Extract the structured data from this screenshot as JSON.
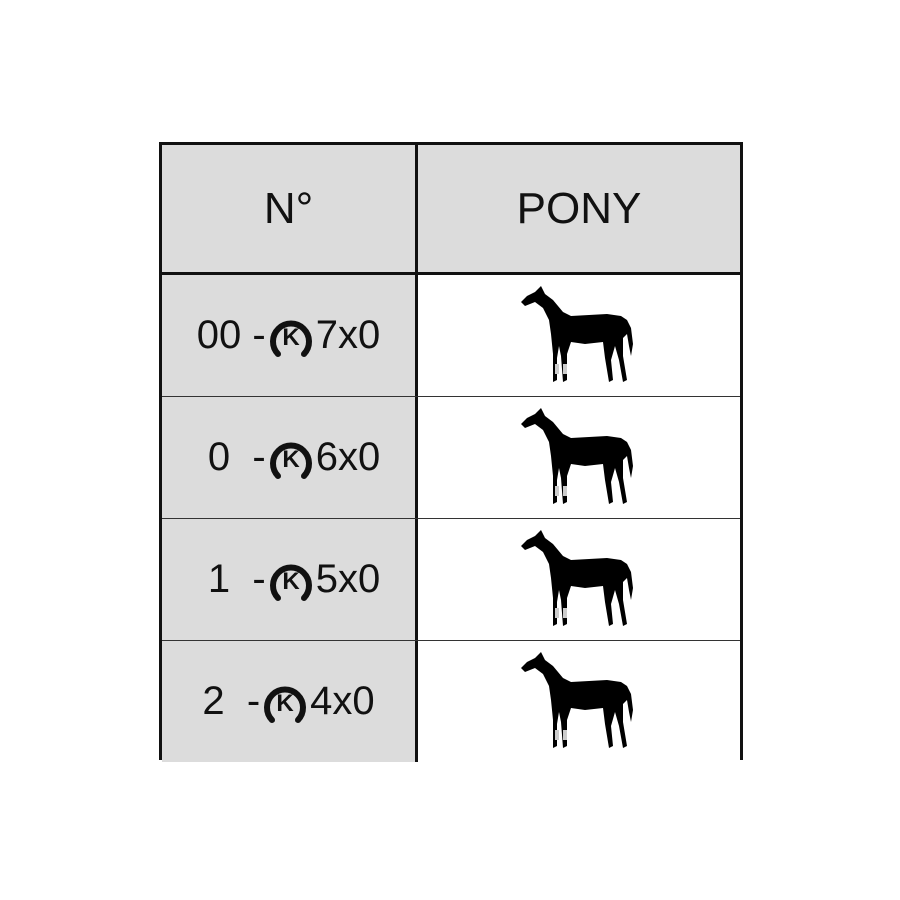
{
  "header": {
    "col1": "N°",
    "col2": "PONY"
  },
  "rows": [
    {
      "number": "00",
      "separator": " -",
      "size": "7x0",
      "icon": "horse-icon"
    },
    {
      "number": " 0",
      "separator": "  -",
      "size": "6x0",
      "icon": "horse-icon"
    },
    {
      "number": " 1",
      "separator": "  -",
      "size": "5x0",
      "icon": "horse-icon"
    },
    {
      "number": "2",
      "separator": "  -",
      "size": "4x0",
      "icon": "horse-icon"
    }
  ],
  "brand_logo": {
    "letter": "K",
    "shape": "horseshoe"
  },
  "colors": {
    "header_bg": "#dcdcdc",
    "border": "#111111"
  }
}
